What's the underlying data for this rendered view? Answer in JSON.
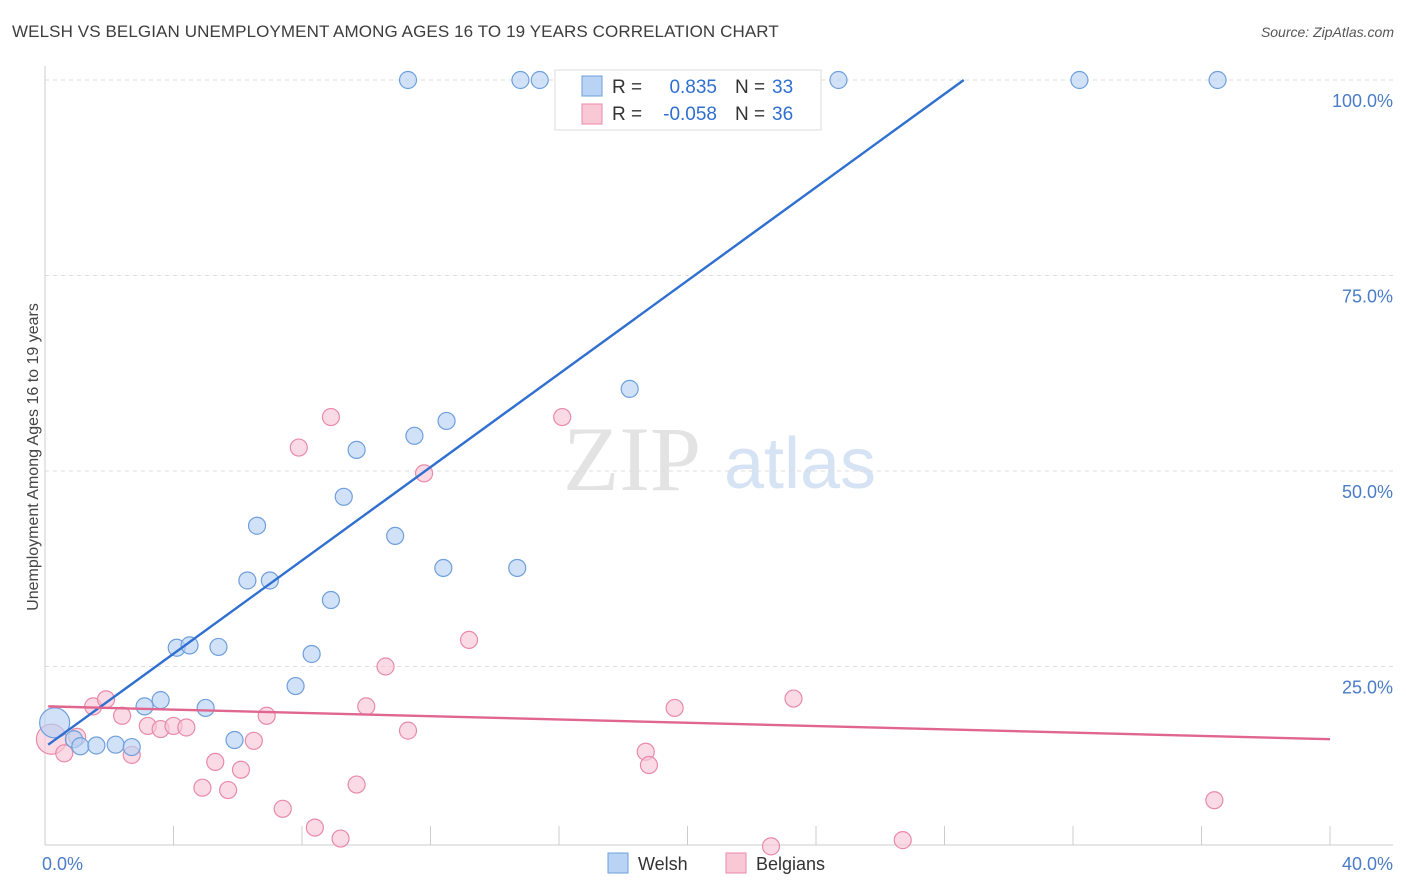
{
  "title": "WELSH VS BELGIAN UNEMPLOYMENT AMONG AGES 16 TO 19 YEARS CORRELATION CHART",
  "source": "Source: ZipAtlas.com",
  "watermark": {
    "zip": "ZIP",
    "atlas": "atlas"
  },
  "colors": {
    "welsh_fill": "#b9d3f5",
    "welsh_stroke": "#6f9fdc",
    "welsh_line": "#2f6fd0",
    "belgian_fill": "#f8c8d7",
    "belgian_stroke": "#e98aa8",
    "belgian_line": "#e0668f",
    "grid": "#dddddd",
    "tick_label": "#4a7cc7"
  },
  "legend": {
    "rows": [
      {
        "r_label": "R =",
        "r_value": "0.835",
        "n_label": "N =",
        "n_value": "33"
      },
      {
        "r_label": "R =",
        "r_value": "-0.058",
        "n_label": "N =",
        "n_value": "36"
      }
    ]
  },
  "bottom_legend": [
    "Welsh",
    "Belgians"
  ],
  "chart_data": {
    "type": "scatter",
    "title": "WELSH VS BELGIAN UNEMPLOYMENT AMONG AGES 16 TO 19 YEARS CORRELATION CHART",
    "xlabel": "",
    "ylabel": "Unemployment Among Ages 16 to 19 years",
    "xlim": [
      0,
      40
    ],
    "ylim": [
      0,
      100
    ],
    "x_tick_labels": [
      "0.0%",
      "40.0%"
    ],
    "y_tick_labels": [
      "100.0%",
      "75.0%",
      "50.0%",
      "25.0%"
    ],
    "y_ticks": [
      100,
      75,
      50,
      25
    ],
    "grid": true,
    "legend_position": "top-center",
    "series": [
      {
        "name": "Welsh",
        "r": 0.835,
        "n": 33,
        "trend": {
          "x": [
            0.1,
            28.6
          ],
          "y": [
            15.0,
            100.0
          ]
        },
        "points": [
          [
            0.3,
            17.8
          ],
          [
            0.9,
            15.7
          ],
          [
            1.1,
            14.8
          ],
          [
            1.6,
            14.9
          ],
          [
            2.2,
            15.0
          ],
          [
            2.7,
            14.7
          ],
          [
            3.1,
            19.9
          ],
          [
            3.6,
            20.7
          ],
          [
            4.1,
            27.4
          ],
          [
            4.5,
            27.7
          ],
          [
            5.0,
            19.7
          ],
          [
            5.4,
            27.5
          ],
          [
            5.9,
            15.6
          ],
          [
            6.6,
            43.0
          ],
          [
            6.3,
            36.0
          ],
          [
            7.0,
            36.0
          ],
          [
            7.8,
            22.5
          ],
          [
            8.3,
            26.6
          ],
          [
            8.9,
            33.5
          ],
          [
            9.3,
            46.7
          ],
          [
            9.7,
            52.7
          ],
          [
            10.9,
            41.7
          ],
          [
            11.5,
            54.5
          ],
          [
            12.4,
            37.6
          ],
          [
            12.5,
            56.4
          ],
          [
            14.7,
            37.6
          ],
          [
            18.2,
            60.5
          ],
          [
            11.3,
            100.0
          ],
          [
            14.8,
            100.0
          ],
          [
            15.4,
            100.0
          ],
          [
            24.7,
            100.0
          ],
          [
            32.2,
            100.0
          ],
          [
            36.5,
            100.0
          ]
        ]
      },
      {
        "name": "Belgians",
        "r": -0.058,
        "n": 36,
        "trend": {
          "x": [
            0.1,
            40.0
          ],
          "y": [
            19.9,
            15.7
          ]
        },
        "points": [
          [
            0.2,
            15.7
          ],
          [
            0.6,
            13.9
          ],
          [
            1.0,
            16.0
          ],
          [
            1.5,
            19.9
          ],
          [
            1.9,
            20.8
          ],
          [
            2.4,
            18.7
          ],
          [
            2.7,
            13.7
          ],
          [
            3.2,
            17.4
          ],
          [
            3.6,
            17.0
          ],
          [
            4.0,
            17.4
          ],
          [
            4.4,
            17.2
          ],
          [
            4.9,
            9.5
          ],
          [
            5.3,
            12.8
          ],
          [
            5.7,
            9.2
          ],
          [
            6.1,
            11.8
          ],
          [
            6.5,
            15.5
          ],
          [
            6.9,
            18.7
          ],
          [
            7.4,
            6.8
          ],
          [
            7.9,
            53.0
          ],
          [
            8.4,
            4.4
          ],
          [
            8.9,
            56.9
          ],
          [
            9.2,
            3.0
          ],
          [
            9.7,
            9.9
          ],
          [
            10.0,
            19.9
          ],
          [
            10.6,
            25.0
          ],
          [
            11.3,
            16.8
          ],
          [
            11.8,
            49.7
          ],
          [
            13.2,
            28.4
          ],
          [
            16.1,
            56.9
          ],
          [
            18.7,
            14.1
          ],
          [
            18.8,
            12.4
          ],
          [
            19.6,
            19.7
          ],
          [
            22.6,
            2.0
          ],
          [
            23.3,
            20.9
          ],
          [
            26.7,
            2.8
          ],
          [
            36.4,
            7.9
          ]
        ]
      }
    ]
  }
}
